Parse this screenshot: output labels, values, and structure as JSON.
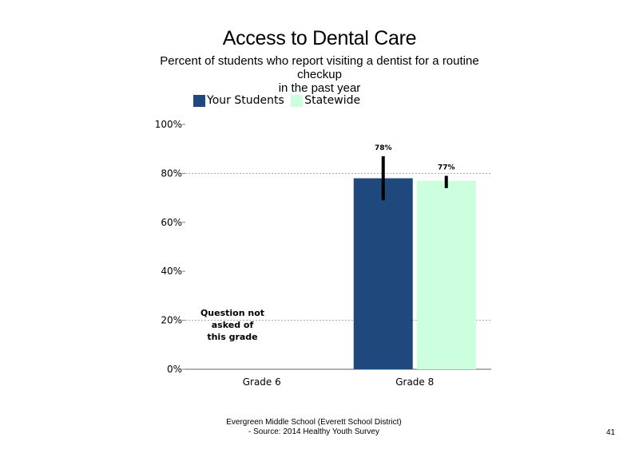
{
  "chart_data": {
    "type": "bar",
    "title": "Access to Dental Care",
    "subtitle_lines": [
      "Percent of students who report visiting a dentist for a routine",
      "checkup",
      "in the past year"
    ],
    "categories": [
      "Grade 6",
      "Grade 8"
    ],
    "series": [
      {
        "name": "Your Students",
        "color": "#1f497d",
        "values": [
          null,
          78
        ],
        "error_low": [
          null,
          69
        ],
        "error_high": [
          null,
          87
        ],
        "labels": [
          "",
          "78%"
        ]
      },
      {
        "name": "Statewide",
        "color": "#ccffdd",
        "values": [
          null,
          77
        ],
        "error_low": [
          null,
          74
        ],
        "error_high": [
          null,
          79
        ],
        "labels": [
          "",
          "77%"
        ]
      }
    ],
    "y_ticks": [
      "0%",
      "20%",
      "40%",
      "60%",
      "80%",
      "100%"
    ],
    "ylim": [
      0,
      100
    ],
    "gridlines": [
      20,
      80
    ],
    "annotation_lines": [
      "Question not",
      "asked of",
      "this grade"
    ],
    "legend_position": "top-left"
  },
  "footer": {
    "line1": "Evergreen Middle School (Everett School District)",
    "line2": "- Source: 2014 Healthy Youth Survey"
  },
  "page_number": "41"
}
